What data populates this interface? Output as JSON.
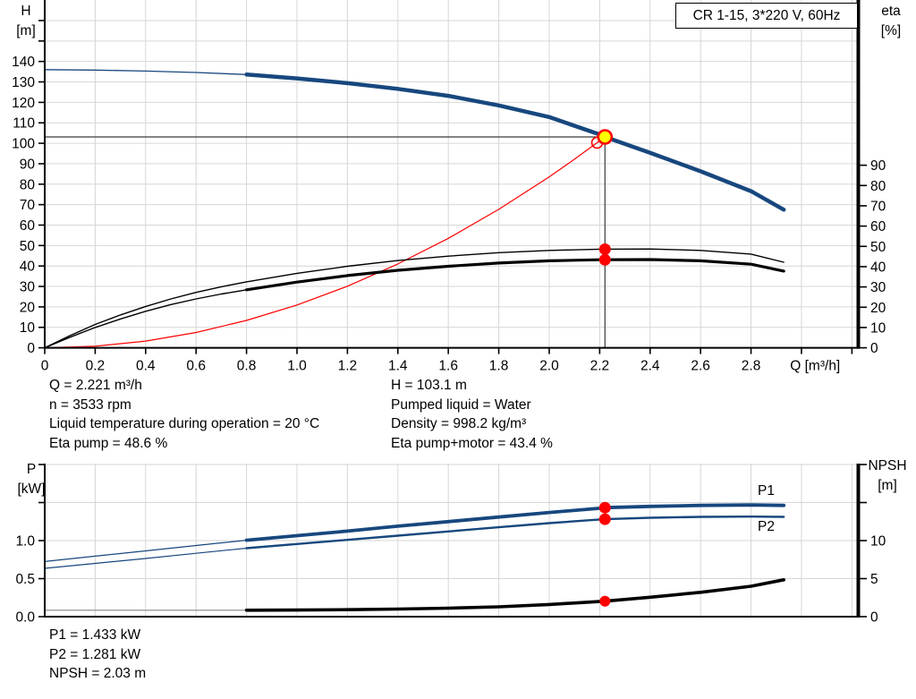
{
  "colors": {
    "blue": "#17477e",
    "red": "#fe0000",
    "black": "#000000",
    "gray": "#9a9a9a",
    "yellow": "#ffff00",
    "grid": "#d6d6d6",
    "crosshair": "#3a3a3a"
  },
  "info": {
    "top_left": [
      "Q = 2.221 m³/h",
      "n = 3533 rpm",
      "Liquid temperature during operation = 20 °C",
      "Eta pump = 48.6 %"
    ],
    "top_right": [
      "H = 103.1 m",
      "Pumped liquid = Water",
      "Density = 998.2 kg/m³",
      "Eta pump+motor = 43.4 %"
    ],
    "bottom": [
      "P1 = 1.433 kW",
      "P2 = 1.281 kW",
      "NPSH = 2.03 m"
    ]
  },
  "chart_data": [
    {
      "type": "line",
      "title": "CR 1-15, 3*220 V, 60Hz",
      "x_axis": {
        "min": 0,
        "max": 3.22,
        "title": "Q [m³/h]",
        "title_q": 2.955,
        "ticks": [
          {
            "v": 0,
            "label": "0"
          },
          {
            "v": 0.2,
            "label": "0.2"
          },
          {
            "v": 0.4,
            "label": "0.4"
          },
          {
            "v": 0.6,
            "label": "0.6"
          },
          {
            "v": 0.8,
            "label": "0.8"
          },
          {
            "v": 1.0,
            "label": "1.0"
          },
          {
            "v": 1.2,
            "label": "1.2"
          },
          {
            "v": 1.4,
            "label": "1.4"
          },
          {
            "v": 1.6,
            "label": "1.6"
          },
          {
            "v": 1.8,
            "label": "1.8"
          },
          {
            "v": 2.0,
            "label": "2.0"
          },
          {
            "v": 2.2,
            "label": "2.2"
          },
          {
            "v": 2.4,
            "label": "2.4"
          },
          {
            "v": 2.6,
            "label": "2.6"
          },
          {
            "v": 2.8,
            "label": "2.8"
          },
          {
            "v": 3.0,
            "label": ""
          },
          {
            "v": 3.2,
            "label": ""
          }
        ]
      },
      "x_grid": [
        0.2,
        0.4,
        0.6,
        0.8,
        1.0,
        1.2,
        1.4,
        1.6,
        1.8,
        2.0,
        2.2,
        2.4,
        2.6,
        2.8,
        3.0,
        3.2
      ],
      "h_grid": [
        10,
        20,
        30,
        40,
        50,
        60,
        70,
        80,
        90,
        100,
        110,
        120,
        130,
        140,
        150,
        160
      ],
      "y_left": {
        "min": 0,
        "max": 170.05,
        "label_lines": [
          "H",
          "[m]"
        ],
        "ticks": [
          {
            "v": 0,
            "label": "0"
          },
          {
            "v": 10,
            "label": "10"
          },
          {
            "v": 20,
            "label": "20"
          },
          {
            "v": 30,
            "label": "30"
          },
          {
            "v": 40,
            "label": "40"
          },
          {
            "v": 50,
            "label": "50"
          },
          {
            "v": 60,
            "label": "60"
          },
          {
            "v": 70,
            "label": "70"
          },
          {
            "v": 80,
            "label": "80"
          },
          {
            "v": 90,
            "label": "90"
          },
          {
            "v": 100,
            "label": "100"
          },
          {
            "v": 110,
            "label": "110"
          },
          {
            "v": 120,
            "label": "120"
          },
          {
            "v": 130,
            "label": "130"
          },
          {
            "v": 140,
            "label": "140"
          },
          {
            "v": 150,
            "label": ""
          },
          {
            "v": 160,
            "label": ""
          }
        ]
      },
      "y_right": {
        "min": 0,
        "max": 171.45,
        "label_lines": [
          "eta",
          "[%]"
        ],
        "ticks": [
          {
            "v": 0,
            "label": "0"
          },
          {
            "v": 10,
            "label": "10"
          },
          {
            "v": 20,
            "label": "20"
          },
          {
            "v": 30,
            "label": "30"
          },
          {
            "v": 40,
            "label": "40"
          },
          {
            "v": 50,
            "label": "50"
          },
          {
            "v": 60,
            "label": "60"
          },
          {
            "v": 70,
            "label": "70"
          },
          {
            "v": 80,
            "label": "80"
          },
          {
            "v": 90,
            "label": "90"
          }
        ]
      },
      "crosshair": {
        "q": 2.221,
        "v": 103.1
      },
      "series": [
        {
          "name": "head-curve-thin",
          "color": "blue",
          "width": 1.3,
          "axis": "left",
          "points": [
            [
              0,
              136
            ],
            [
              0.2,
              135.8
            ],
            [
              0.4,
              135.3
            ],
            [
              0.6,
              134.6
            ],
            [
              0.8,
              133.6
            ]
          ]
        },
        {
          "name": "head-curve",
          "color": "blue",
          "width": 4.5,
          "axis": "left",
          "points": [
            [
              0.8,
              133.6
            ],
            [
              1.0,
              131.7
            ],
            [
              1.2,
              129.4
            ],
            [
              1.4,
              126.6
            ],
            [
              1.6,
              123.2
            ],
            [
              1.8,
              118.5
            ],
            [
              2.0,
              112.8
            ],
            [
              2.2,
              104.3
            ],
            [
              2.221,
              103.1
            ],
            [
              2.4,
              95.3
            ],
            [
              2.6,
              86.3
            ],
            [
              2.8,
              76.6
            ],
            [
              2.93,
              67.5
            ]
          ]
        },
        {
          "name": "system-curve",
          "color": "red",
          "width": 1.2,
          "axis": "left",
          "points": [
            [
              0,
              0
            ],
            [
              0.2,
              0.8
            ],
            [
              0.4,
              3.3
            ],
            [
              0.6,
              7.5
            ],
            [
              0.8,
              13.4
            ],
            [
              1.0,
              20.9
            ],
            [
              1.2,
              30.1
            ],
            [
              1.4,
              41
            ],
            [
              1.6,
              53.5
            ],
            [
              1.8,
              67.7
            ],
            [
              2.0,
              83.6
            ],
            [
              2.1,
              92.2
            ],
            [
              2.221,
              103.1
            ]
          ]
        },
        {
          "name": "eta-pump-curve",
          "color": "black",
          "width": 1.4,
          "axis": "right",
          "points": [
            [
              0,
              0
            ],
            [
              0.1,
              6
            ],
            [
              0.2,
              11.5
            ],
            [
              0.3,
              16.2
            ],
            [
              0.4,
              20.4
            ],
            [
              0.5,
              24.1
            ],
            [
              0.6,
              27.3
            ],
            [
              0.7,
              30.1
            ],
            [
              0.8,
              32.5
            ],
            [
              1.0,
              36.7
            ],
            [
              1.2,
              40.2
            ],
            [
              1.4,
              43
            ],
            [
              1.6,
              45.2
            ],
            [
              1.8,
              46.9
            ],
            [
              2.0,
              48
            ],
            [
              2.2,
              48.6
            ],
            [
              2.4,
              48.7
            ],
            [
              2.6,
              48
            ],
            [
              2.8,
              46.2
            ],
            [
              2.93,
              42.2
            ]
          ]
        },
        {
          "name": "eta-pump-motor-curve-thin",
          "color": "black",
          "width": 1.4,
          "axis": "right",
          "points": [
            [
              0,
              0
            ],
            [
              0.1,
              5.2
            ],
            [
              0.2,
              10
            ],
            [
              0.3,
              14.2
            ],
            [
              0.4,
              18
            ],
            [
              0.5,
              21.3
            ],
            [
              0.6,
              24.1
            ],
            [
              0.7,
              26.5
            ],
            [
              0.8,
              28.6
            ]
          ]
        },
        {
          "name": "eta-pump-motor-curve",
          "color": "black",
          "width": 3.2,
          "axis": "right",
          "points": [
            [
              0.8,
              28.6
            ],
            [
              1.0,
              32.4
            ],
            [
              1.2,
              35.6
            ],
            [
              1.4,
              38.2
            ],
            [
              1.6,
              40.2
            ],
            [
              1.8,
              41.8
            ],
            [
              2.0,
              42.9
            ],
            [
              2.2,
              43.4
            ],
            [
              2.4,
              43.5
            ],
            [
              2.6,
              42.9
            ],
            [
              2.8,
              41.2
            ],
            [
              2.93,
              37.8
            ]
          ]
        }
      ],
      "markers": [
        {
          "type": "ring",
          "name": "system-intersection-ring",
          "q": 2.19,
          "v": 100.3,
          "axis": "left",
          "r": 6,
          "stroke": "red"
        },
        {
          "type": "duty",
          "name": "duty-point",
          "q": 2.221,
          "v": 103.1,
          "axis": "left",
          "r": 7.5,
          "fill": "yellow",
          "stroke": "red"
        },
        {
          "type": "dot",
          "name": "eta-pump-point",
          "q": 2.221,
          "v": 48.6,
          "axis": "right",
          "r": 6.5,
          "fill": "red"
        },
        {
          "type": "dot",
          "name": "eta-pump-motor-point",
          "q": 2.221,
          "v": 43.4,
          "axis": "right",
          "r": 6.5,
          "fill": "red"
        }
      ],
      "series_labels": []
    },
    {
      "type": "line",
      "title": "",
      "x_axis": {
        "min": 0,
        "max": 3.22,
        "title": "",
        "title_q": 0,
        "ticks": []
      },
      "x_grid": [
        0.2,
        0.4,
        0.6,
        0.8,
        1.0,
        1.2,
        1.4,
        1.6,
        1.8,
        2.0,
        2.2,
        2.4,
        2.6,
        2.8,
        3.0,
        3.2
      ],
      "h_grid": [
        0.5,
        1.0,
        1.5,
        2.0
      ],
      "y_left": {
        "min": 0,
        "max": 2.012,
        "label_lines": [
          "P",
          "[kW]"
        ],
        "ticks": [
          {
            "v": 0,
            "label": "0.0"
          },
          {
            "v": 0.5,
            "label": "0.5"
          },
          {
            "v": 1.0,
            "label": "1.0"
          },
          {
            "v": 1.5,
            "label": ""
          },
          {
            "v": 2.0,
            "label": ""
          }
        ]
      },
      "y_right": {
        "min": 0,
        "max": 20.12,
        "label_lines": [
          "NPSH",
          "[m]"
        ],
        "ticks": [
          {
            "v": 0,
            "label": "0"
          },
          {
            "v": 5,
            "label": "5"
          },
          {
            "v": 10,
            "label": "10"
          },
          {
            "v": 15,
            "label": ""
          },
          {
            "v": 20,
            "label": ""
          }
        ]
      },
      "series": [
        {
          "name": "p1-curve-thin",
          "color": "blue",
          "width": 1.2,
          "axis": "left",
          "points": [
            [
              0,
              0.725
            ],
            [
              0.2,
              0.795
            ],
            [
              0.4,
              0.865
            ],
            [
              0.6,
              0.935
            ],
            [
              0.8,
              1.005
            ]
          ]
        },
        {
          "name": "p1-curve",
          "color": "blue",
          "width": 3.8,
          "axis": "left",
          "points": [
            [
              0.8,
              1.005
            ],
            [
              1.0,
              1.065
            ],
            [
              1.2,
              1.125
            ],
            [
              1.4,
              1.19
            ],
            [
              1.6,
              1.25
            ],
            [
              1.8,
              1.31
            ],
            [
              2.0,
              1.37
            ],
            [
              2.2,
              1.425
            ],
            [
              2.221,
              1.433
            ],
            [
              2.4,
              1.45
            ],
            [
              2.6,
              1.462
            ],
            [
              2.8,
              1.468
            ],
            [
              2.93,
              1.463
            ]
          ]
        },
        {
          "name": "p2-curve-thin",
          "color": "blue",
          "width": 1.2,
          "axis": "left",
          "points": [
            [
              0,
              0.635
            ],
            [
              0.2,
              0.7
            ],
            [
              0.4,
              0.765
            ],
            [
              0.6,
              0.833
            ],
            [
              0.8,
              0.9
            ]
          ]
        },
        {
          "name": "p2-curve",
          "color": "blue",
          "width": 2.4,
          "axis": "left",
          "points": [
            [
              0.8,
              0.9
            ],
            [
              1.0,
              0.955
            ],
            [
              1.2,
              1.01
            ],
            [
              1.4,
              1.065
            ],
            [
              1.6,
              1.12
            ],
            [
              1.8,
              1.175
            ],
            [
              2.0,
              1.23
            ],
            [
              2.2,
              1.278
            ],
            [
              2.221,
              1.281
            ],
            [
              2.4,
              1.3
            ],
            [
              2.6,
              1.312
            ],
            [
              2.8,
              1.315
            ],
            [
              2.93,
              1.312
            ]
          ]
        },
        {
          "name": "npsh-curve-thin",
          "color": "gray",
          "width": 1.4,
          "axis": "right",
          "points": [
            [
              0,
              0.85
            ],
            [
              0.8,
              0.85
            ]
          ]
        },
        {
          "name": "npsh-curve",
          "color": "black",
          "width": 3.6,
          "axis": "right",
          "points": [
            [
              0.8,
              0.85
            ],
            [
              1.0,
              0.87
            ],
            [
              1.2,
              0.92
            ],
            [
              1.4,
              1.0
            ],
            [
              1.6,
              1.12
            ],
            [
              1.8,
              1.3
            ],
            [
              2.0,
              1.6
            ],
            [
              2.221,
              2.03
            ],
            [
              2.4,
              2.55
            ],
            [
              2.6,
              3.2
            ],
            [
              2.8,
              4.0
            ],
            [
              2.93,
              4.85
            ]
          ]
        }
      ],
      "markers": [
        {
          "type": "dot",
          "name": "p1-point",
          "q": 2.221,
          "v": 1.433,
          "axis": "left",
          "r": 6.5,
          "fill": "red"
        },
        {
          "type": "dot",
          "name": "p2-point",
          "q": 2.221,
          "v": 1.281,
          "axis": "left",
          "r": 6.5,
          "fill": "red"
        },
        {
          "type": "dot",
          "name": "npsh-point",
          "q": 2.221,
          "v": 2.03,
          "axis": "right",
          "r": 6,
          "fill": "red"
        }
      ],
      "series_labels": [
        {
          "text": "P1",
          "q": 2.86,
          "v": 1.6,
          "axis": "left",
          "color": "blue"
        },
        {
          "text": "P2",
          "q": 2.86,
          "v": 1.13,
          "axis": "left",
          "color": "blue"
        }
      ]
    }
  ]
}
